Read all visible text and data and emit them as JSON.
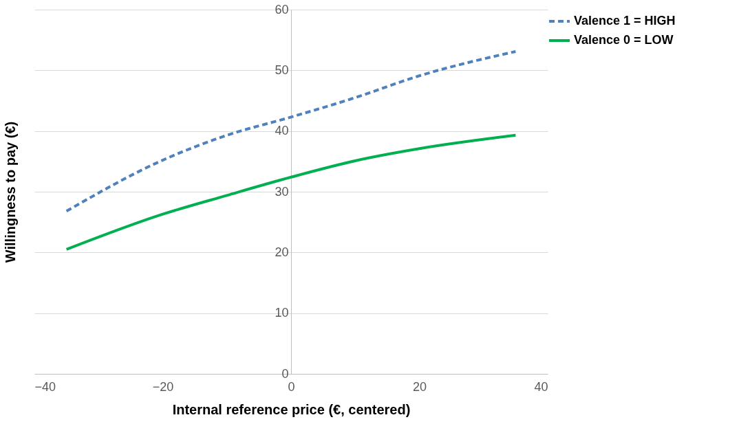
{
  "chart_data": {
    "type": "line",
    "xlabel": "Internal reference price (€, centered)",
    "ylabel": "Willingness to pay (€)",
    "xlim": [
      -40,
      40
    ],
    "xticks": [
      -40,
      -20,
      0,
      20,
      40
    ],
    "ylim": [
      0,
      60
    ],
    "yticks": [
      0,
      10,
      20,
      30,
      40,
      50,
      60
    ],
    "grid": "y",
    "legend": "top right",
    "marker": "none",
    "series": [
      {
        "name": "Valence 1 = HIGH",
        "color": "#4f81bd",
        "line_style": "dashed",
        "x": [
          -35,
          -20,
          -10,
          0,
          10,
          20,
          35
        ],
        "values": [
          26.8,
          35.2,
          39.3,
          42.3,
          45.5,
          49.1,
          53.1
        ]
      },
      {
        "name": "Valence 0 = LOW",
        "color": "#00b050",
        "line_style": "solid",
        "x": [
          -35,
          -20,
          -10,
          0,
          10,
          20,
          35
        ],
        "values": [
          20.5,
          26.3,
          29.4,
          32.4,
          35.1,
          37.1,
          39.3
        ]
      }
    ]
  }
}
